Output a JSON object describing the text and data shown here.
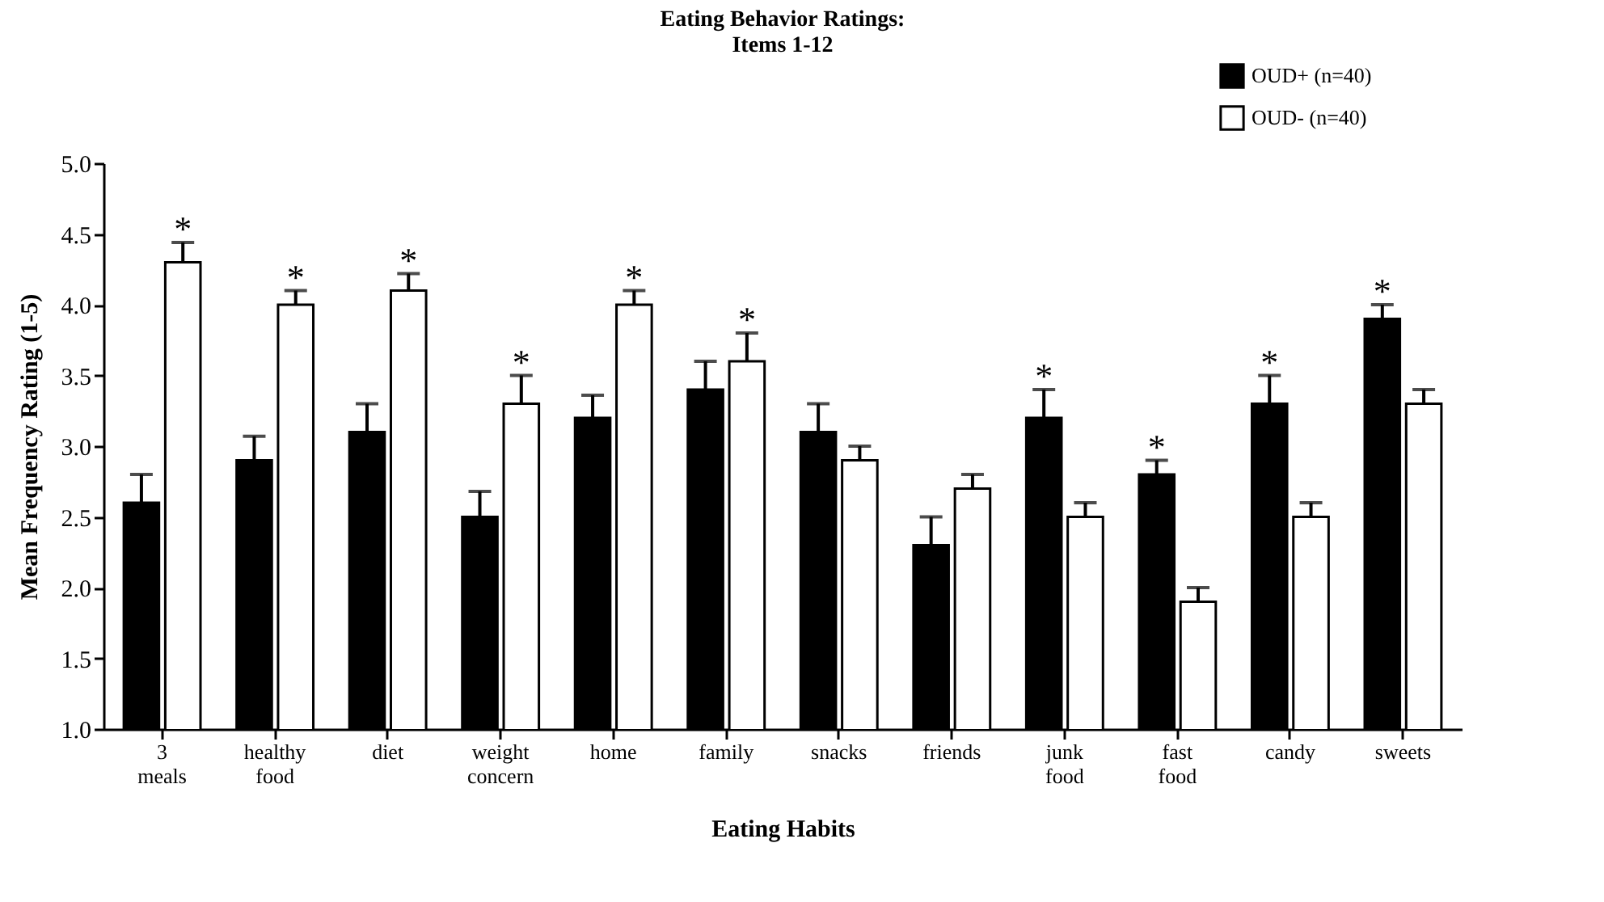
{
  "chart_data": {
    "type": "bar",
    "title": "Eating Behavior Ratings:\nItems 1-12",
    "xlabel": "Eating Habits",
    "ylabel": "Mean Frequency Rating (1-5)",
    "categories": [
      "3 meals",
      "healthy food",
      "diet",
      "weight concern",
      "home",
      "family",
      "snacks",
      "friends",
      "junk food",
      "fast food",
      "candy",
      "sweets"
    ],
    "series": [
      {
        "name": "OUD+ (n=40)",
        "color": "#000000",
        "values": [
          2.6,
          2.9,
          3.1,
          2.5,
          3.2,
          3.4,
          3.1,
          2.3,
          3.2,
          2.8,
          3.3,
          3.9
        ],
        "errors": [
          [
            2.6,
            2.8
          ],
          [
            2.9,
            3.07
          ],
          [
            3.1,
            3.3
          ],
          [
            2.5,
            2.68
          ],
          [
            3.2,
            3.36
          ],
          [
            3.4,
            3.6
          ],
          [
            3.1,
            3.3
          ],
          [
            2.3,
            2.5
          ],
          [
            3.2,
            3.4
          ],
          [
            2.8,
            2.9
          ],
          [
            3.3,
            3.5
          ],
          [
            3.9,
            4.0
          ]
        ],
        "value_labels": [
          null,
          null,
          null,
          null,
          null,
          null,
          null,
          null,
          "*",
          "*",
          "*",
          "*"
        ]
      },
      {
        "name": "OUD- (n=40)",
        "color": "#ffffff",
        "values": [
          4.3,
          4.0,
          4.1,
          3.3,
          4.0,
          3.6,
          2.9,
          2.7,
          2.5,
          1.9,
          2.5,
          3.3
        ],
        "errors": [
          [
            4.3,
            4.44
          ],
          [
            4.0,
            4.1
          ],
          [
            4.1,
            4.22
          ],
          [
            3.3,
            3.5
          ],
          [
            4.0,
            4.1
          ],
          [
            3.6,
            3.8
          ],
          [
            2.9,
            3.0
          ],
          [
            2.7,
            2.8
          ],
          [
            2.5,
            2.6
          ],
          [
            1.9,
            2.0
          ],
          [
            2.5,
            2.6
          ],
          [
            3.3,
            3.4
          ]
        ],
        "value_labels": [
          "*",
          "*",
          "*",
          "*",
          "*",
          "*",
          null,
          null,
          null,
          null,
          null,
          null
        ]
      }
    ],
    "ylim": [
      1.0,
      5.0
    ],
    "yticks": [
      {
        "value": 1.0,
        "label": "1.0"
      },
      {
        "value": 1.5,
        "label": "1.5"
      },
      {
        "value": 2.0,
        "label": "2.0"
      },
      {
        "value": 2.5,
        "label": "2.5"
      },
      {
        "value": 3.0,
        "label": "3.0"
      },
      {
        "value": 3.5,
        "label": "3.5"
      },
      {
        "value": 4.0,
        "label": "4.0"
      },
      {
        "value": 4.5,
        "label": "4.5"
      },
      {
        "value": 5.0,
        "label": "5.0"
      }
    ],
    "grid": false,
    "legend": "top right"
  }
}
